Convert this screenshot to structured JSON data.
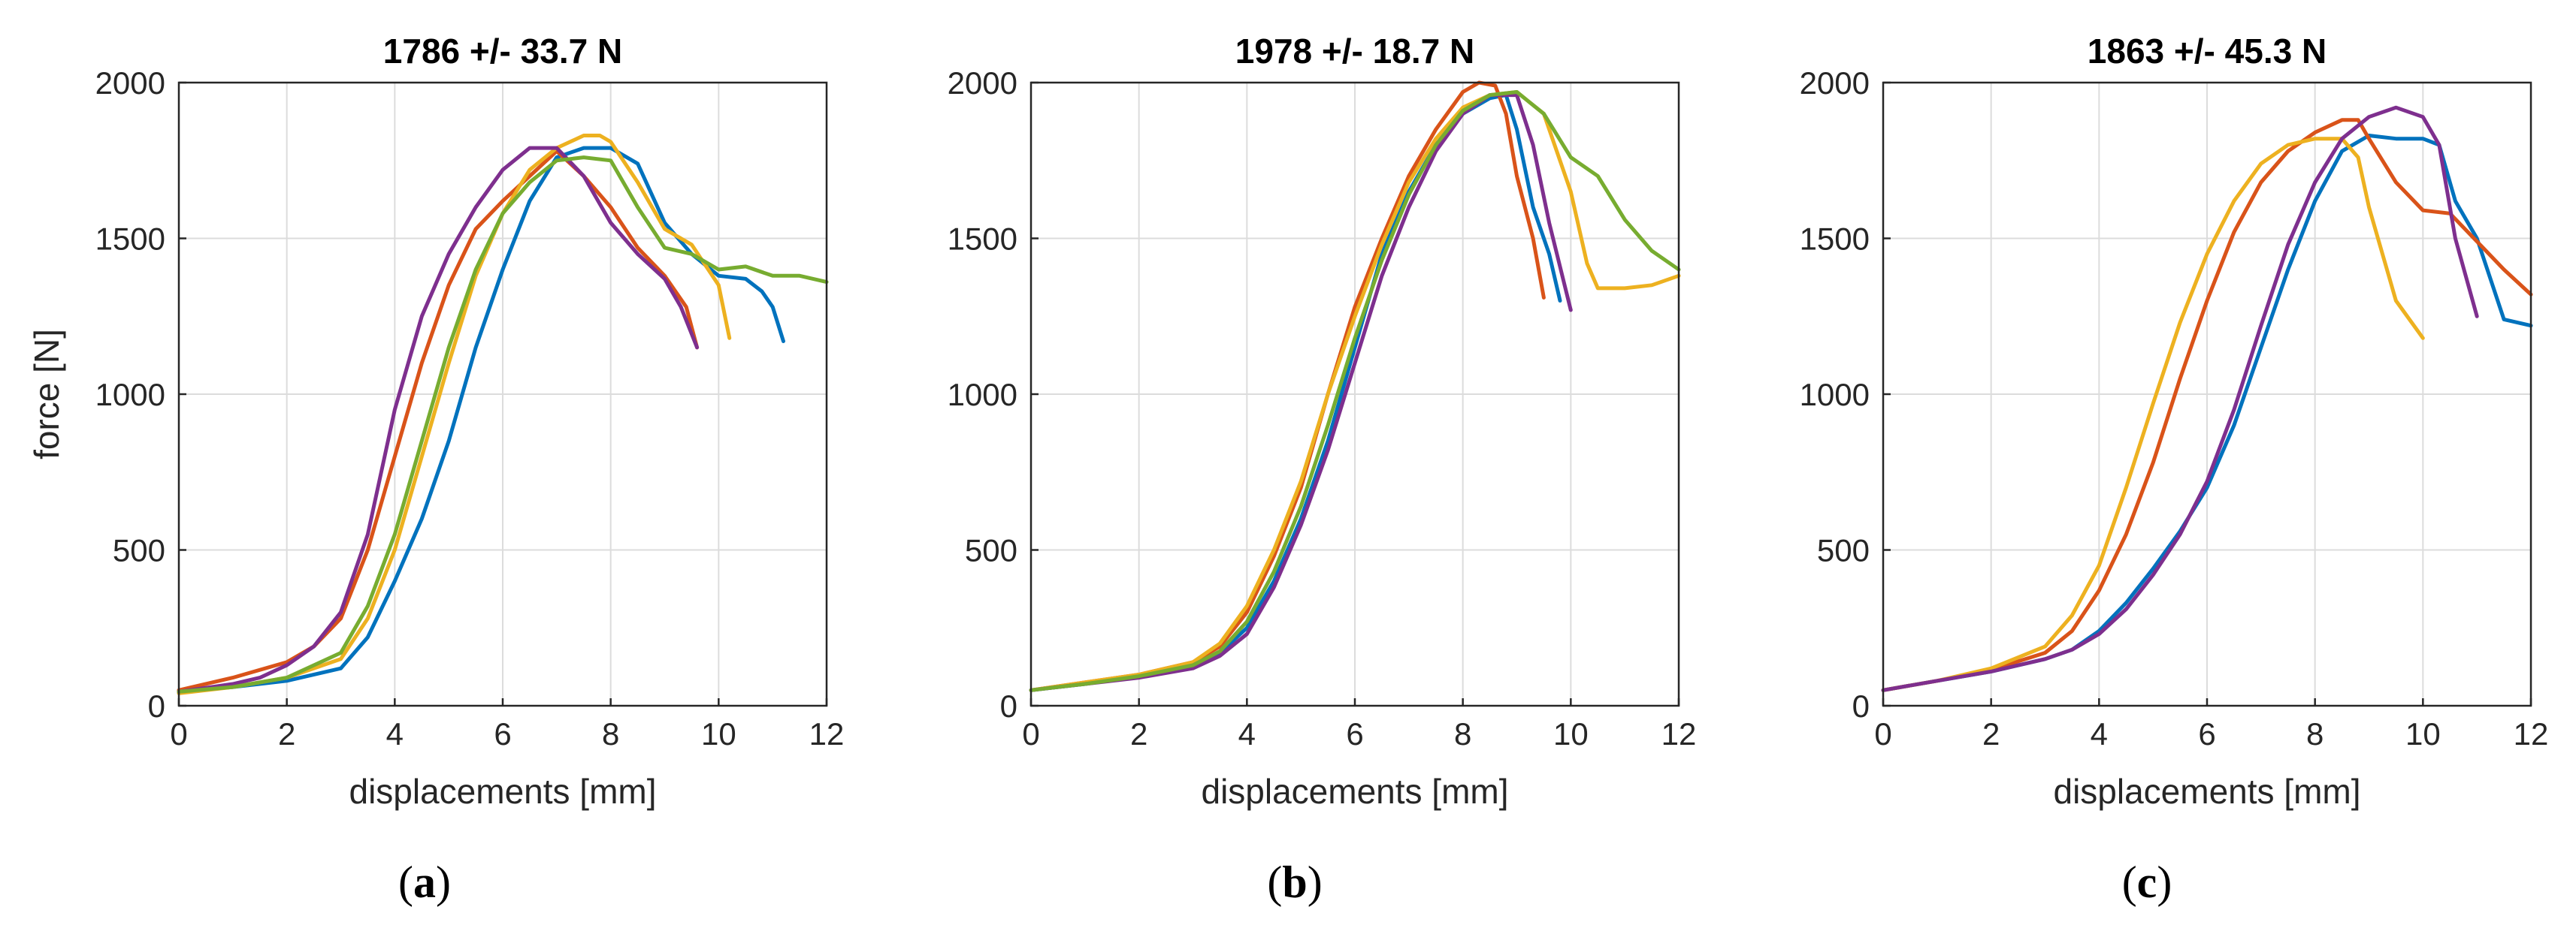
{
  "chart_data": [
    {
      "type": "line",
      "panel_label": "a",
      "title": "1786 +/- 33.7 N",
      "xlabel": "displacements [mm]",
      "ylabel": "force [N]",
      "xlim": [
        0,
        12
      ],
      "ylim": [
        0,
        2000
      ],
      "xticks": [
        0,
        2,
        4,
        6,
        8,
        10,
        12
      ],
      "yticks": [
        0,
        500,
        1000,
        1500,
        2000
      ],
      "grid": true,
      "series": [
        {
          "name": "blue",
          "color": "#0072BD",
          "x": [
            0,
            1,
            2,
            3,
            3.5,
            4,
            4.5,
            5,
            5.5,
            6,
            6.5,
            7,
            7.5,
            8,
            8.5,
            9,
            9.5,
            10,
            10.5,
            10.8,
            11,
            11.2
          ],
          "y": [
            45,
            60,
            80,
            120,
            220,
            400,
            600,
            850,
            1150,
            1400,
            1620,
            1760,
            1790,
            1790,
            1740,
            1550,
            1450,
            1380,
            1370,
            1330,
            1280,
            1170
          ]
        },
        {
          "name": "orange",
          "color": "#D95319",
          "x": [
            0,
            1,
            2,
            2.5,
            3,
            3.5,
            4,
            4.5,
            5,
            5.5,
            6,
            6.5,
            7,
            7.5,
            8,
            8.5,
            9,
            9.4,
            9.6
          ],
          "y": [
            50,
            90,
            140,
            190,
            280,
            500,
            800,
            1100,
            1350,
            1530,
            1620,
            1700,
            1780,
            1700,
            1600,
            1470,
            1380,
            1280,
            1150
          ]
        },
        {
          "name": "yellow",
          "color": "#EDB120",
          "x": [
            0,
            1,
            2,
            3,
            3.5,
            4,
            4.5,
            5,
            5.5,
            6,
            6.5,
            7,
            7.5,
            7.8,
            8,
            8.5,
            9,
            9.5,
            10,
            10.2
          ],
          "y": [
            40,
            60,
            90,
            150,
            280,
            500,
            800,
            1100,
            1380,
            1580,
            1720,
            1790,
            1830,
            1830,
            1810,
            1680,
            1530,
            1480,
            1350,
            1180
          ]
        },
        {
          "name": "purple",
          "color": "#7E2F8E",
          "x": [
            0,
            1,
            1.5,
            2,
            2.5,
            3,
            3.5,
            4,
            4.5,
            5,
            5.5,
            6,
            6.5,
            7,
            7.5,
            8,
            8.5,
            9,
            9.3,
            9.6
          ],
          "y": [
            45,
            70,
            90,
            130,
            190,
            300,
            550,
            950,
            1250,
            1450,
            1600,
            1720,
            1790,
            1790,
            1700,
            1550,
            1450,
            1370,
            1280,
            1150
          ]
        },
        {
          "name": "green",
          "color": "#77AC30",
          "x": [
            0,
            1,
            2,
            3,
            3.5,
            4,
            4.5,
            5,
            5.5,
            6,
            6.5,
            7,
            7.5,
            8,
            8.5,
            9,
            9.5,
            10,
            10.5,
            11,
            11.5,
            12
          ],
          "y": [
            45,
            60,
            90,
            170,
            320,
            550,
            850,
            1150,
            1400,
            1580,
            1680,
            1750,
            1760,
            1750,
            1600,
            1470,
            1450,
            1400,
            1410,
            1380,
            1380,
            1360
          ]
        }
      ]
    },
    {
      "type": "line",
      "panel_label": "b",
      "title": "1978 +/- 18.7 N",
      "xlabel": "displacements [mm]",
      "ylabel": "",
      "xlim": [
        0,
        12
      ],
      "ylim": [
        0,
        2000
      ],
      "xticks": [
        0,
        2,
        4,
        6,
        8,
        10,
        12
      ],
      "yticks": [
        0,
        500,
        1000,
        1500,
        2000
      ],
      "grid": true,
      "series": [
        {
          "name": "blue",
          "color": "#0072BD",
          "x": [
            0,
            1,
            2,
            3,
            3.5,
            4,
            4.5,
            5,
            5.5,
            6,
            6.5,
            7,
            7.5,
            8,
            8.5,
            8.8,
            9,
            9.3,
            9.6,
            9.8
          ],
          "y": [
            50,
            70,
            95,
            130,
            170,
            250,
            400,
            600,
            850,
            1150,
            1450,
            1650,
            1800,
            1900,
            1950,
            1960,
            1850,
            1600,
            1450,
            1300
          ]
        },
        {
          "name": "orange",
          "color": "#D95319",
          "x": [
            0,
            1,
            2,
            3,
            3.5,
            4,
            4.5,
            5,
            5.5,
            6,
            6.5,
            7,
            7.5,
            8,
            8.3,
            8.6,
            8.8,
            9,
            9.3,
            9.5
          ],
          "y": [
            50,
            75,
            100,
            140,
            190,
            300,
            480,
            700,
            1000,
            1280,
            1500,
            1700,
            1850,
            1970,
            2000,
            1990,
            1900,
            1700,
            1500,
            1310
          ]
        },
        {
          "name": "yellow",
          "color": "#EDB120",
          "x": [
            0,
            1,
            2,
            3,
            3.5,
            4,
            4.5,
            5,
            5.5,
            6,
            6.5,
            7,
            7.5,
            8,
            8.5,
            9,
            9.5,
            10,
            10.3,
            10.5,
            11,
            11.5,
            12
          ],
          "y": [
            50,
            75,
            100,
            140,
            200,
            320,
            500,
            720,
            1000,
            1250,
            1480,
            1680,
            1820,
            1920,
            1960,
            1970,
            1900,
            1650,
            1420,
            1340,
            1340,
            1350,
            1380
          ]
        },
        {
          "name": "purple",
          "color": "#7E2F8E",
          "x": [
            0,
            1,
            2,
            3,
            3.5,
            4,
            4.5,
            5,
            5.5,
            6,
            6.5,
            7,
            7.5,
            8,
            8.5,
            9,
            9.3,
            9.6,
            10
          ],
          "y": [
            50,
            70,
            90,
            120,
            160,
            230,
            380,
            580,
            820,
            1100,
            1380,
            1600,
            1780,
            1900,
            1960,
            1960,
            1800,
            1550,
            1270
          ]
        },
        {
          "name": "green",
          "color": "#77AC30",
          "x": [
            0,
            1,
            2,
            3,
            3.5,
            4,
            4.5,
            5,
            5.5,
            6,
            6.5,
            7,
            7.5,
            8,
            8.5,
            9,
            9.5,
            10,
            10.5,
            11,
            11.5,
            12
          ],
          "y": [
            50,
            70,
            95,
            130,
            175,
            270,
            430,
            640,
            900,
            1180,
            1430,
            1640,
            1800,
            1910,
            1960,
            1970,
            1900,
            1760,
            1700,
            1560,
            1460,
            1400
          ]
        }
      ]
    },
    {
      "type": "line",
      "panel_label": "c",
      "title": "1863 +/- 45.3 N",
      "xlabel": "displacements [mm]",
      "ylabel": "",
      "xlim": [
        0,
        12
      ],
      "ylim": [
        0,
        2000
      ],
      "xticks": [
        0,
        2,
        4,
        6,
        8,
        10,
        12
      ],
      "yticks": [
        0,
        500,
        1000,
        1500,
        2000
      ],
      "grid": true,
      "series": [
        {
          "name": "blue",
          "color": "#0072BD",
          "x": [
            0,
            1,
            2,
            3,
            3.5,
            4,
            4.5,
            5,
            5.5,
            6,
            6.5,
            7,
            7.5,
            8,
            8.5,
            9,
            9.5,
            10,
            10.3,
            10.6,
            11,
            11.5,
            12
          ],
          "y": [
            50,
            80,
            110,
            150,
            180,
            240,
            330,
            440,
            560,
            700,
            900,
            1150,
            1400,
            1620,
            1780,
            1830,
            1820,
            1820,
            1800,
            1620,
            1500,
            1240,
            1220
          ]
        },
        {
          "name": "orange",
          "color": "#D95319",
          "x": [
            0,
            1,
            2,
            3,
            3.5,
            4,
            4.5,
            5,
            5.5,
            6,
            6.5,
            7,
            7.5,
            8,
            8.5,
            8.8,
            9,
            9.5,
            10,
            10.5,
            11,
            11.5,
            12
          ],
          "y": [
            50,
            80,
            115,
            170,
            240,
            370,
            550,
            780,
            1050,
            1300,
            1520,
            1680,
            1780,
            1840,
            1880,
            1880,
            1820,
            1680,
            1590,
            1580,
            1490,
            1400,
            1320
          ]
        },
        {
          "name": "yellow",
          "color": "#EDB120",
          "x": [
            0,
            1,
            2,
            3,
            3.5,
            4,
            4.5,
            5,
            5.5,
            6,
            6.5,
            7,
            7.5,
            8,
            8.5,
            8.8,
            9,
            9.5,
            10
          ],
          "y": [
            50,
            80,
            120,
            190,
            290,
            450,
            700,
            970,
            1230,
            1450,
            1620,
            1740,
            1800,
            1820,
            1820,
            1760,
            1600,
            1300,
            1180
          ]
        },
        {
          "name": "purple",
          "color": "#7E2F8E",
          "x": [
            0,
            1,
            2,
            3,
            3.5,
            4,
            4.5,
            5,
            5.5,
            6,
            6.5,
            7,
            7.5,
            8,
            8.5,
            9,
            9.5,
            10,
            10.3,
            10.6,
            11
          ],
          "y": [
            50,
            80,
            110,
            150,
            180,
            230,
            310,
            420,
            550,
            720,
            950,
            1220,
            1480,
            1680,
            1820,
            1890,
            1920,
            1890,
            1800,
            1500,
            1250
          ]
        }
      ]
    }
  ]
}
